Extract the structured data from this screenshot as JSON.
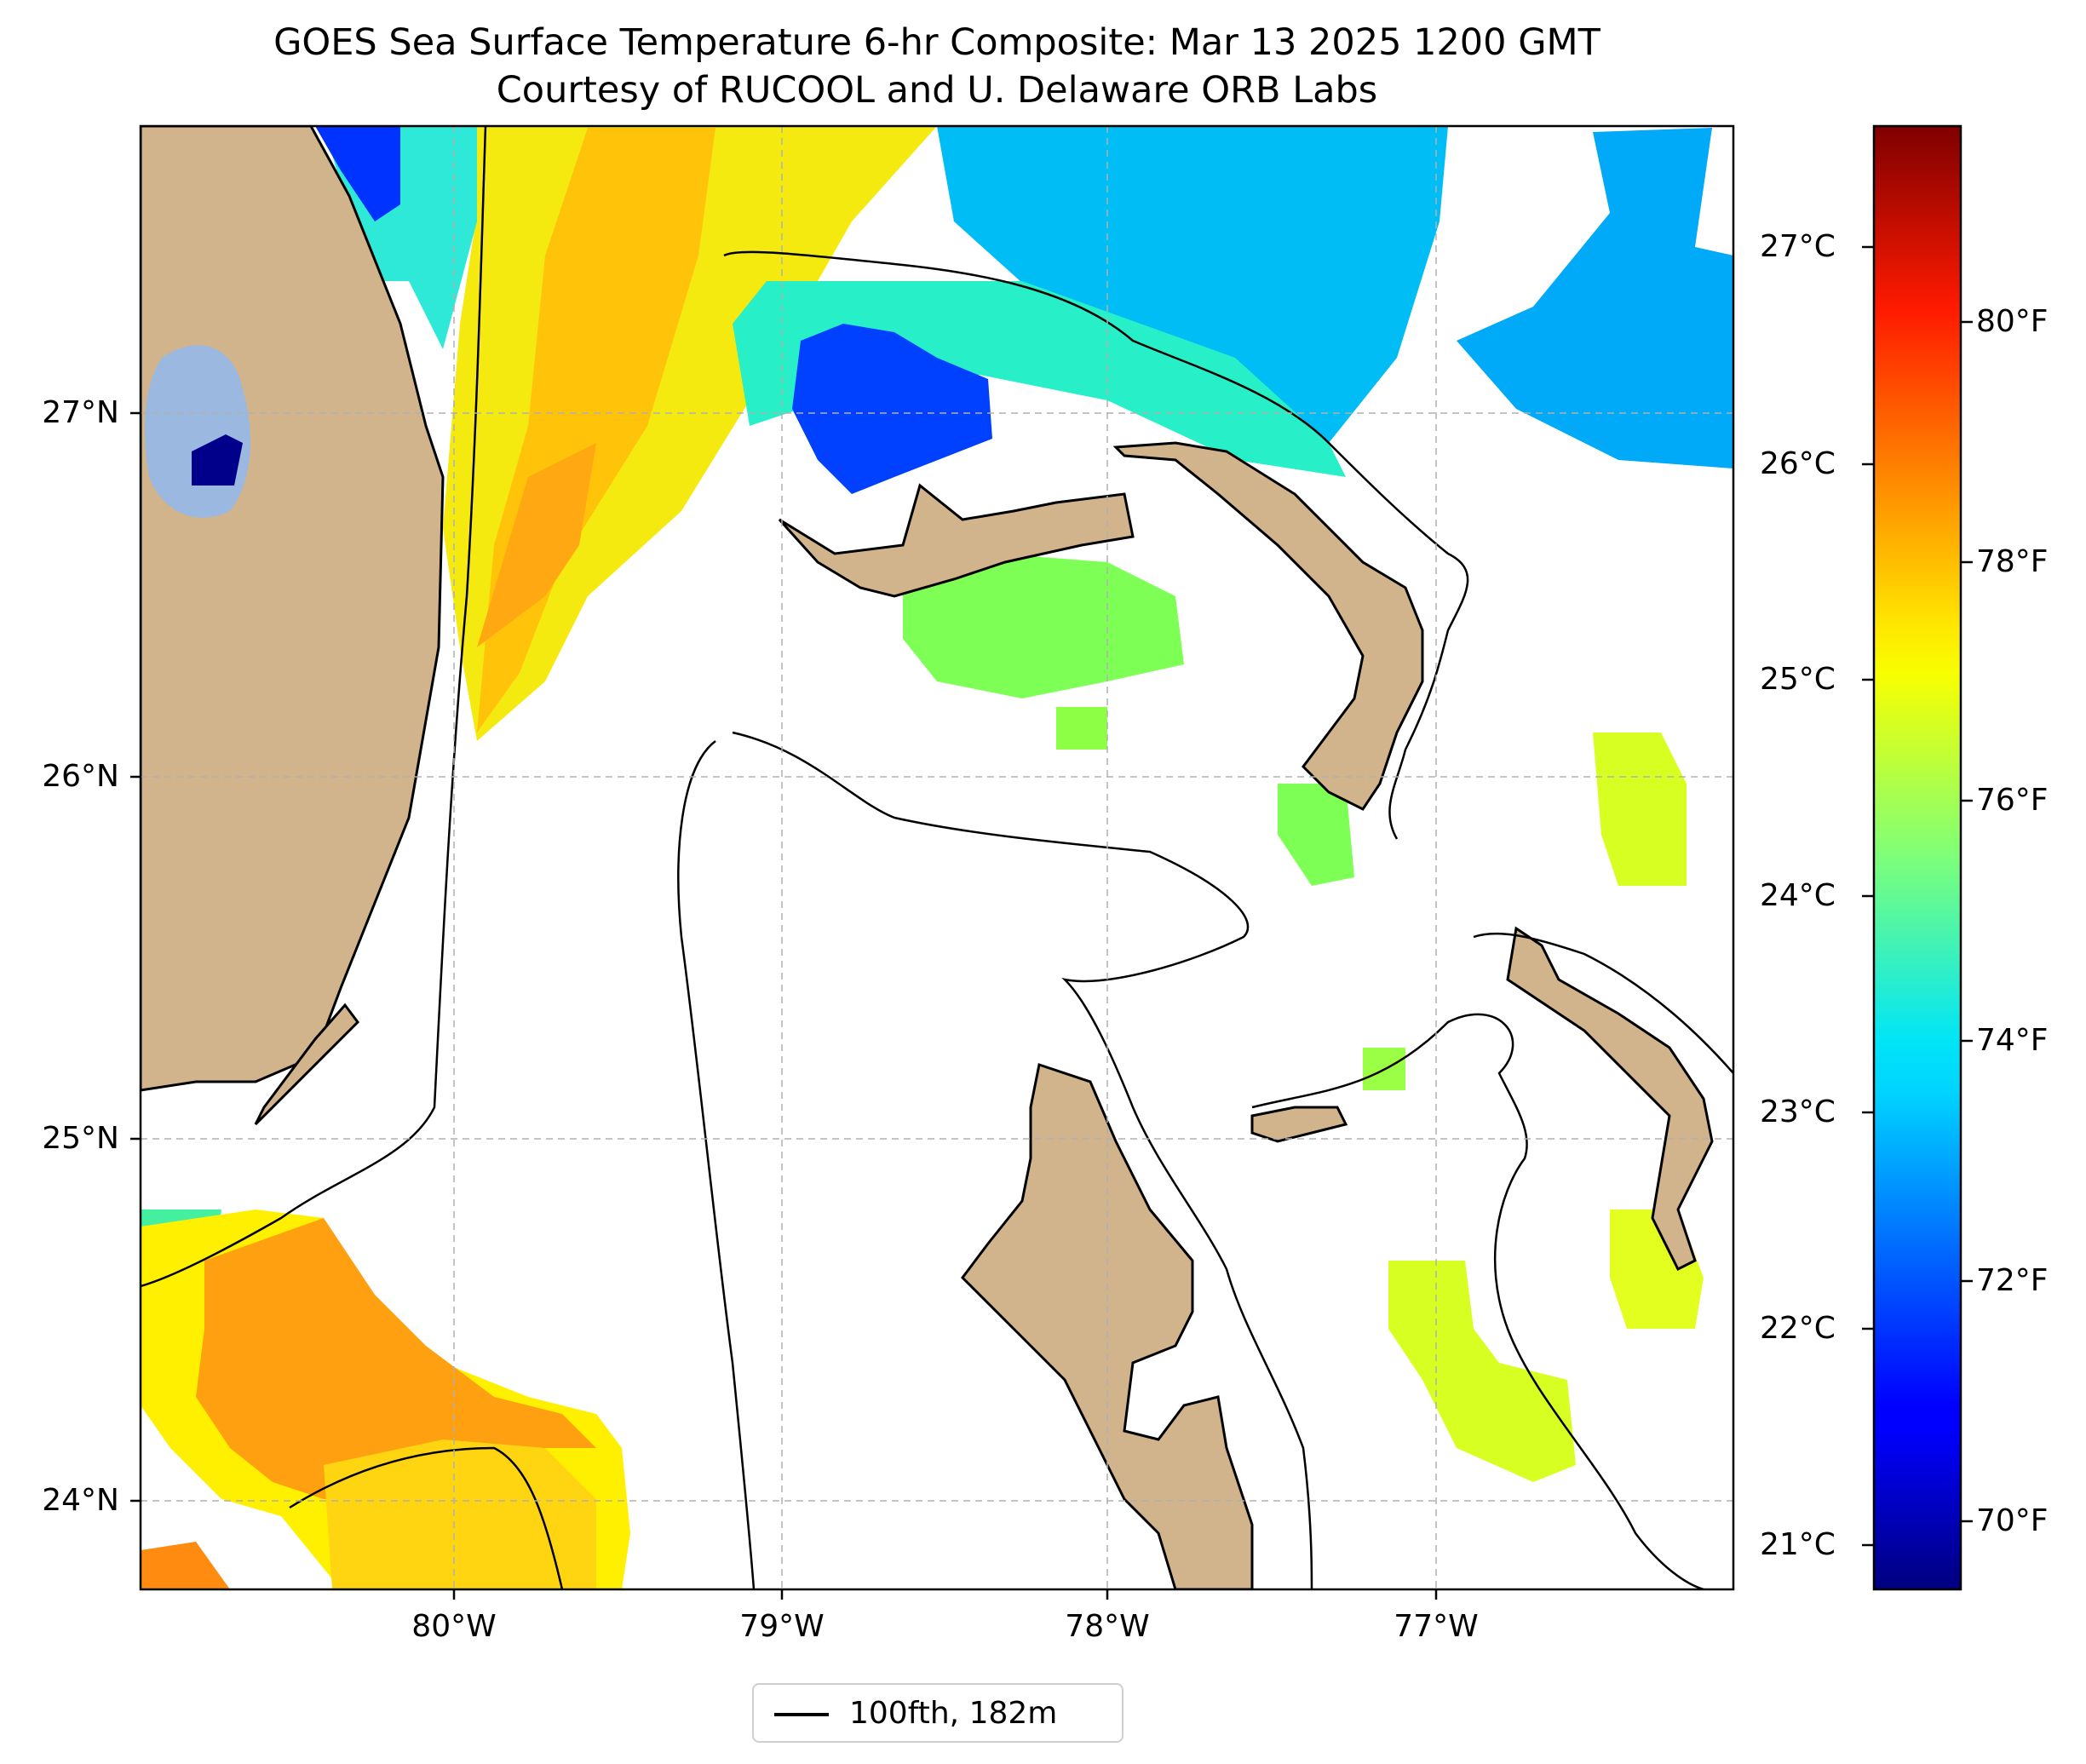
{
  "title": {
    "line1": "GOES Sea Surface Temperature 6-hr Composite: Mar 13 2025 1200 GMT",
    "line2": "Courtesy of RUCOOL and U. Delaware ORB Labs"
  },
  "map": {
    "lat_labels": [
      "27°N",
      "26°N",
      "25°N",
      "24°N"
    ],
    "lon_labels": [
      "80°W",
      "79°W",
      "78°W",
      "77°W"
    ],
    "lat_range": [
      23.75,
      27.8
    ],
    "lon_range": [
      -80.95,
      -76.1
    ],
    "gridlines": true,
    "land_color": "#d2b48c",
    "lake_color": "#9ab8e0"
  },
  "legend": {
    "label": "100fth, 182m",
    "location": "bottom-center"
  },
  "colorbar": {
    "colormap": "jet",
    "celsius_labels": [
      "27°C",
      "26°C",
      "25°C",
      "24°C",
      "23°C",
      "22°C",
      "21°C"
    ],
    "fahrenheit_labels": [
      "80°F",
      "78°F",
      "76°F",
      "74°F",
      "72°F",
      "70°F"
    ],
    "range_c": [
      20.8,
      27.6
    ]
  }
}
